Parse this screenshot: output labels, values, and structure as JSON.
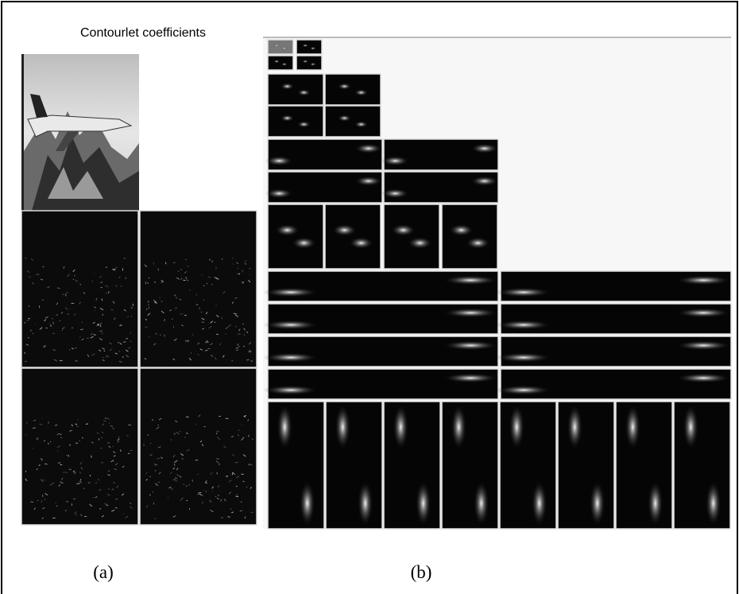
{
  "figure": {
    "title": "Contourlet coefficients",
    "captions": [
      "(a)",
      "(b)"
    ]
  }
}
